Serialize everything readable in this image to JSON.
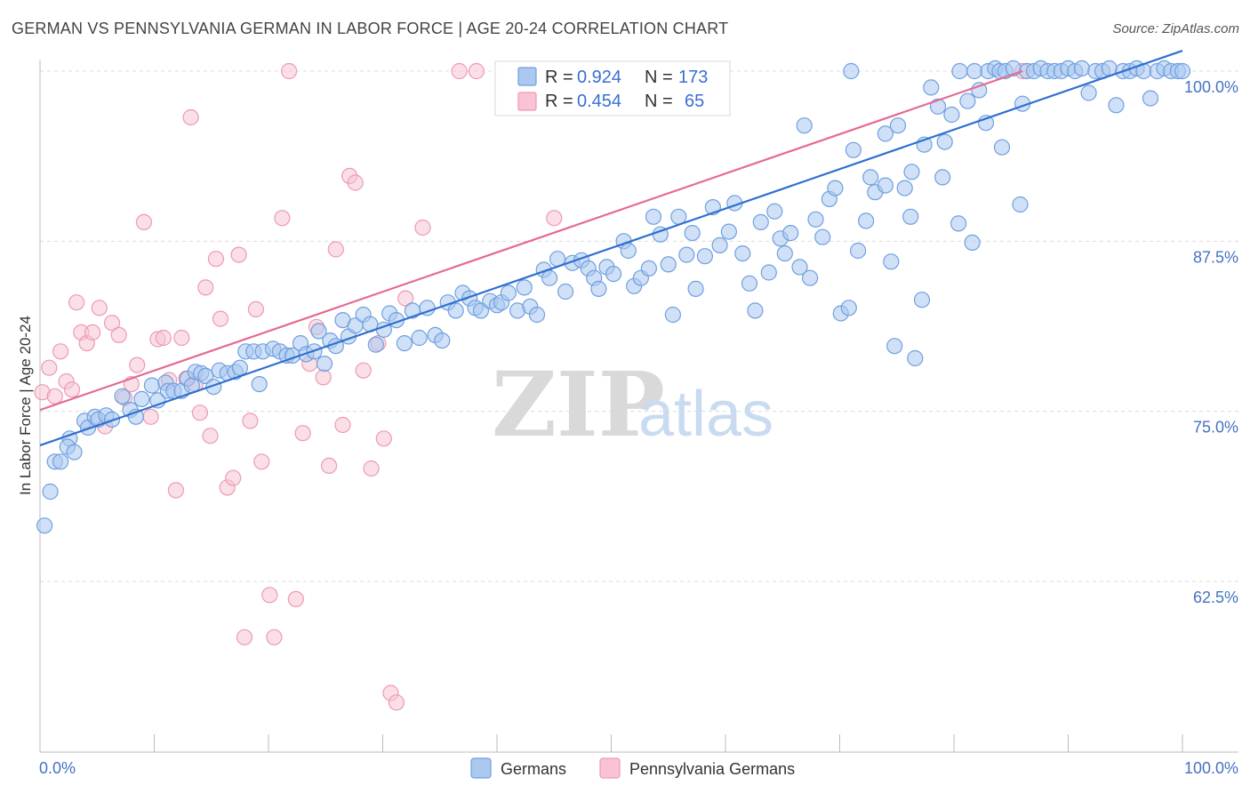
{
  "title": "GERMAN VS PENNSYLVANIA GERMAN IN LABOR FORCE | AGE 20-24 CORRELATION CHART",
  "source": "Source: ZipAtlas.com",
  "watermark": {
    "zip": "ZIP",
    "atlas": "atlas"
  },
  "colors": {
    "blue_fill": "#aac8f0",
    "blue_stroke": "#6f9fe0",
    "blue_line": "#2f6fd0",
    "pink_fill": "#f8c4d4",
    "pink_stroke": "#ec9ab4",
    "pink_line": "#e56a94",
    "grid": "#dcdcdc",
    "tick_label": "#4472c4"
  },
  "legend_top": {
    "rows": [
      {
        "r_label": "R = ",
        "r_value": "0.924",
        "n_label": "N = ",
        "n_value": "173",
        "color": "blue"
      },
      {
        "r_label": "R = ",
        "r_value": "0.454",
        "n_label": "N = ",
        "n_value": "65",
        "color": "pink"
      }
    ]
  },
  "legend_bottom": [
    {
      "label": "Germans",
      "color": "blue"
    },
    {
      "label": "Pennsylvania Germans",
      "color": "pink"
    }
  ],
  "chart_data": {
    "type": "scatter",
    "title": "GERMAN VS PENNSYLVANIA GERMAN IN LABOR FORCE | AGE 20-24 CORRELATION CHART",
    "xlabel": "",
    "ylabel": "In Labor Force | Age 20-24",
    "xlim": [
      0,
      100
    ],
    "ylim": [
      51.5,
      101.5
    ],
    "x_tick_labels": [
      "0.0%",
      "100.0%"
    ],
    "y_ticks": [
      62.5,
      75.0,
      87.5,
      100.0
    ],
    "y_tick_labels": [
      "62.5%",
      "75.0%",
      "87.5%",
      "100.0%"
    ],
    "grid": true,
    "legend_placement": "top-center",
    "series": [
      {
        "name": "Germans",
        "R": 0.924,
        "N": 173,
        "trend": [
          [
            0,
            72.5
          ],
          [
            100,
            101.5
          ]
        ],
        "points": [
          [
            0.4,
            66.6
          ],
          [
            0.9,
            69.1
          ],
          [
            1.3,
            71.3
          ],
          [
            1.8,
            71.3
          ],
          [
            2.6,
            73.0
          ],
          [
            2.4,
            72.4
          ],
          [
            3.0,
            72.0
          ],
          [
            3.9,
            74.3
          ],
          [
            4.2,
            73.8
          ],
          [
            4.8,
            74.6
          ],
          [
            5.1,
            74.4
          ],
          [
            5.8,
            74.7
          ],
          [
            6.3,
            74.4
          ],
          [
            7.2,
            76.1
          ],
          [
            7.9,
            75.1
          ],
          [
            8.4,
            74.6
          ],
          [
            8.9,
            75.9
          ],
          [
            9.8,
            76.9
          ],
          [
            10.3,
            75.8
          ],
          [
            11.0,
            77.1
          ],
          [
            11.2,
            76.5
          ],
          [
            11.7,
            76.5
          ],
          [
            12.4,
            76.5
          ],
          [
            12.9,
            77.4
          ],
          [
            13.3,
            76.9
          ],
          [
            13.6,
            77.9
          ],
          [
            14.1,
            77.8
          ],
          [
            14.5,
            77.6
          ],
          [
            15.2,
            76.8
          ],
          [
            15.7,
            78.0
          ],
          [
            16.4,
            77.8
          ],
          [
            17.1,
            77.9
          ],
          [
            17.5,
            78.2
          ],
          [
            18.0,
            79.4
          ],
          [
            18.7,
            79.4
          ],
          [
            19.2,
            77.0
          ],
          [
            19.5,
            79.4
          ],
          [
            20.4,
            79.6
          ],
          [
            21.0,
            79.4
          ],
          [
            21.6,
            79.1
          ],
          [
            22.1,
            79.1
          ],
          [
            22.8,
            80.0
          ],
          [
            23.3,
            79.2
          ],
          [
            24.0,
            79.4
          ],
          [
            24.4,
            80.9
          ],
          [
            24.9,
            78.5
          ],
          [
            25.4,
            80.2
          ],
          [
            25.9,
            79.8
          ],
          [
            26.5,
            81.7
          ],
          [
            27.0,
            80.5
          ],
          [
            27.6,
            81.3
          ],
          [
            28.3,
            82.1
          ],
          [
            28.9,
            81.4
          ],
          [
            29.4,
            79.9
          ],
          [
            30.1,
            81.0
          ],
          [
            30.6,
            82.2
          ],
          [
            31.2,
            81.7
          ],
          [
            31.9,
            80.0
          ],
          [
            32.6,
            82.4
          ],
          [
            33.2,
            80.4
          ],
          [
            33.9,
            82.6
          ],
          [
            34.6,
            80.6
          ],
          [
            35.2,
            80.2
          ],
          [
            35.7,
            83.0
          ],
          [
            36.4,
            82.4
          ],
          [
            37.0,
            83.7
          ],
          [
            37.6,
            83.3
          ],
          [
            38.1,
            82.6
          ],
          [
            38.6,
            82.4
          ],
          [
            39.4,
            83.1
          ],
          [
            40.0,
            82.8
          ],
          [
            40.4,
            83.0
          ],
          [
            41.0,
            83.7
          ],
          [
            41.8,
            82.4
          ],
          [
            42.4,
            84.1
          ],
          [
            42.9,
            82.7
          ],
          [
            43.5,
            82.1
          ],
          [
            44.1,
            85.4
          ],
          [
            44.6,
            84.8
          ],
          [
            45.3,
            86.2
          ],
          [
            46.0,
            83.8
          ],
          [
            46.6,
            85.9
          ],
          [
            47.4,
            86.1
          ],
          [
            48.0,
            85.5
          ],
          [
            48.5,
            84.8
          ],
          [
            48.9,
            84.0
          ],
          [
            49.6,
            85.6
          ],
          [
            50.2,
            85.1
          ],
          [
            51.1,
            87.5
          ],
          [
            51.5,
            86.8
          ],
          [
            52.0,
            84.2
          ],
          [
            52.6,
            84.8
          ],
          [
            53.3,
            85.5
          ],
          [
            53.7,
            89.3
          ],
          [
            54.3,
            88.0
          ],
          [
            55.0,
            85.8
          ],
          [
            55.4,
            82.1
          ],
          [
            55.9,
            89.3
          ],
          [
            56.6,
            86.5
          ],
          [
            57.1,
            88.1
          ],
          [
            57.4,
            84.0
          ],
          [
            58.2,
            86.4
          ],
          [
            58.9,
            90.0
          ],
          [
            59.5,
            87.2
          ],
          [
            60.3,
            88.2
          ],
          [
            60.8,
            90.3
          ],
          [
            61.5,
            86.6
          ],
          [
            62.1,
            84.4
          ],
          [
            62.6,
            82.4
          ],
          [
            63.1,
            88.9
          ],
          [
            63.8,
            85.2
          ],
          [
            64.3,
            89.7
          ],
          [
            64.8,
            87.7
          ],
          [
            65.2,
            86.6
          ],
          [
            65.7,
            88.1
          ],
          [
            66.5,
            85.6
          ],
          [
            66.9,
            96.0
          ],
          [
            67.4,
            84.8
          ],
          [
            67.9,
            89.1
          ],
          [
            68.5,
            87.8
          ],
          [
            69.1,
            90.6
          ],
          [
            69.6,
            91.4
          ],
          [
            70.1,
            82.2
          ],
          [
            70.8,
            82.6
          ],
          [
            71.2,
            94.2
          ],
          [
            71.6,
            86.8
          ],
          [
            72.3,
            89.0
          ],
          [
            72.7,
            92.2
          ],
          [
            73.1,
            91.1
          ],
          [
            74.0,
            91.6
          ],
          [
            74.5,
            86.0
          ],
          [
            74.8,
            79.8
          ],
          [
            75.1,
            96.0
          ],
          [
            75.7,
            91.4
          ],
          [
            76.3,
            92.6
          ],
          [
            76.6,
            78.9
          ],
          [
            77.4,
            94.6
          ],
          [
            78.0,
            98.8
          ],
          [
            78.6,
            97.4
          ],
          [
            79.0,
            92.2
          ],
          [
            79.8,
            96.8
          ],
          [
            80.5,
            100.0
          ],
          [
            81.2,
            97.8
          ],
          [
            81.8,
            100.0
          ],
          [
            82.2,
            98.6
          ],
          [
            83.0,
            100.0
          ],
          [
            83.6,
            100.2
          ],
          [
            84.0,
            100.0
          ],
          [
            84.5,
            100.0
          ],
          [
            85.2,
            100.2
          ],
          [
            85.8,
            90.2
          ],
          [
            86.4,
            100.0
          ],
          [
            87.0,
            100.0
          ],
          [
            87.6,
            100.2
          ],
          [
            88.2,
            100.0
          ],
          [
            88.8,
            100.0
          ],
          [
            89.4,
            100.0
          ],
          [
            90.0,
            100.2
          ],
          [
            90.6,
            100.0
          ],
          [
            91.2,
            100.2
          ],
          [
            91.8,
            98.4
          ],
          [
            92.4,
            100.0
          ],
          [
            93.0,
            100.0
          ],
          [
            93.6,
            100.2
          ],
          [
            94.2,
            97.5
          ],
          [
            94.8,
            100.0
          ],
          [
            95.4,
            100.0
          ],
          [
            96.0,
            100.2
          ],
          [
            96.6,
            100.0
          ],
          [
            97.2,
            98.0
          ],
          [
            97.8,
            100.0
          ],
          [
            98.4,
            100.2
          ],
          [
            99.0,
            100.0
          ],
          [
            99.6,
            100.0
          ],
          [
            100.0,
            100.0
          ],
          [
            71.0,
            100.0
          ],
          [
            74.0,
            95.4
          ],
          [
            77.2,
            83.2
          ],
          [
            79.2,
            94.8
          ],
          [
            80.4,
            88.8
          ],
          [
            81.6,
            87.4
          ],
          [
            82.8,
            96.2
          ],
          [
            84.2,
            94.4
          ],
          [
            76.2,
            89.3
          ],
          [
            86.0,
            97.6
          ]
        ]
      },
      {
        "name": "Pennsylvania Germans",
        "R": 0.454,
        "N": 65,
        "trend": [
          [
            0,
            75.1
          ],
          [
            86,
            100.0
          ]
        ],
        "points": [
          [
            0.2,
            76.4
          ],
          [
            0.8,
            78.2
          ],
          [
            1.3,
            76.1
          ],
          [
            1.8,
            79.4
          ],
          [
            2.3,
            77.2
          ],
          [
            2.8,
            76.6
          ],
          [
            3.2,
            83.0
          ],
          [
            3.6,
            80.8
          ],
          [
            4.1,
            80.0
          ],
          [
            4.6,
            80.8
          ],
          [
            5.2,
            82.6
          ],
          [
            5.7,
            73.9
          ],
          [
            6.3,
            81.5
          ],
          [
            6.9,
            80.6
          ],
          [
            7.4,
            76.0
          ],
          [
            8.0,
            77.0
          ],
          [
            8.5,
            78.4
          ],
          [
            9.1,
            88.9
          ],
          [
            9.7,
            74.6
          ],
          [
            10.3,
            80.3
          ],
          [
            10.8,
            80.4
          ],
          [
            11.3,
            77.3
          ],
          [
            11.9,
            69.2
          ],
          [
            12.4,
            80.4
          ],
          [
            12.8,
            77.4
          ],
          [
            13.2,
            96.6
          ],
          [
            13.6,
            77.0
          ],
          [
            14.0,
            74.9
          ],
          [
            14.5,
            84.1
          ],
          [
            14.9,
            73.2
          ],
          [
            15.4,
            86.2
          ],
          [
            15.8,
            81.8
          ],
          [
            16.4,
            69.4
          ],
          [
            16.9,
            70.1
          ],
          [
            17.4,
            86.5
          ],
          [
            17.9,
            58.4
          ],
          [
            18.4,
            74.3
          ],
          [
            18.9,
            82.5
          ],
          [
            19.4,
            71.3
          ],
          [
            20.1,
            61.5
          ],
          [
            20.5,
            58.4
          ],
          [
            21.2,
            89.2
          ],
          [
            21.8,
            100.0
          ],
          [
            22.4,
            61.2
          ],
          [
            23.0,
            73.4
          ],
          [
            23.6,
            78.5
          ],
          [
            24.2,
            81.2
          ],
          [
            24.8,
            77.5
          ],
          [
            25.3,
            71.0
          ],
          [
            25.9,
            86.9
          ],
          [
            26.5,
            74.0
          ],
          [
            27.1,
            92.3
          ],
          [
            27.6,
            91.8
          ],
          [
            28.3,
            78.0
          ],
          [
            29.0,
            70.8
          ],
          [
            29.6,
            80.0
          ],
          [
            30.1,
            73.0
          ],
          [
            30.7,
            54.3
          ],
          [
            31.2,
            53.6
          ],
          [
            32.0,
            83.3
          ],
          [
            33.5,
            88.5
          ],
          [
            36.7,
            100.0
          ],
          [
            38.2,
            100.0
          ],
          [
            45.0,
            89.2
          ],
          [
            86.0,
            100.0
          ]
        ]
      }
    ]
  }
}
